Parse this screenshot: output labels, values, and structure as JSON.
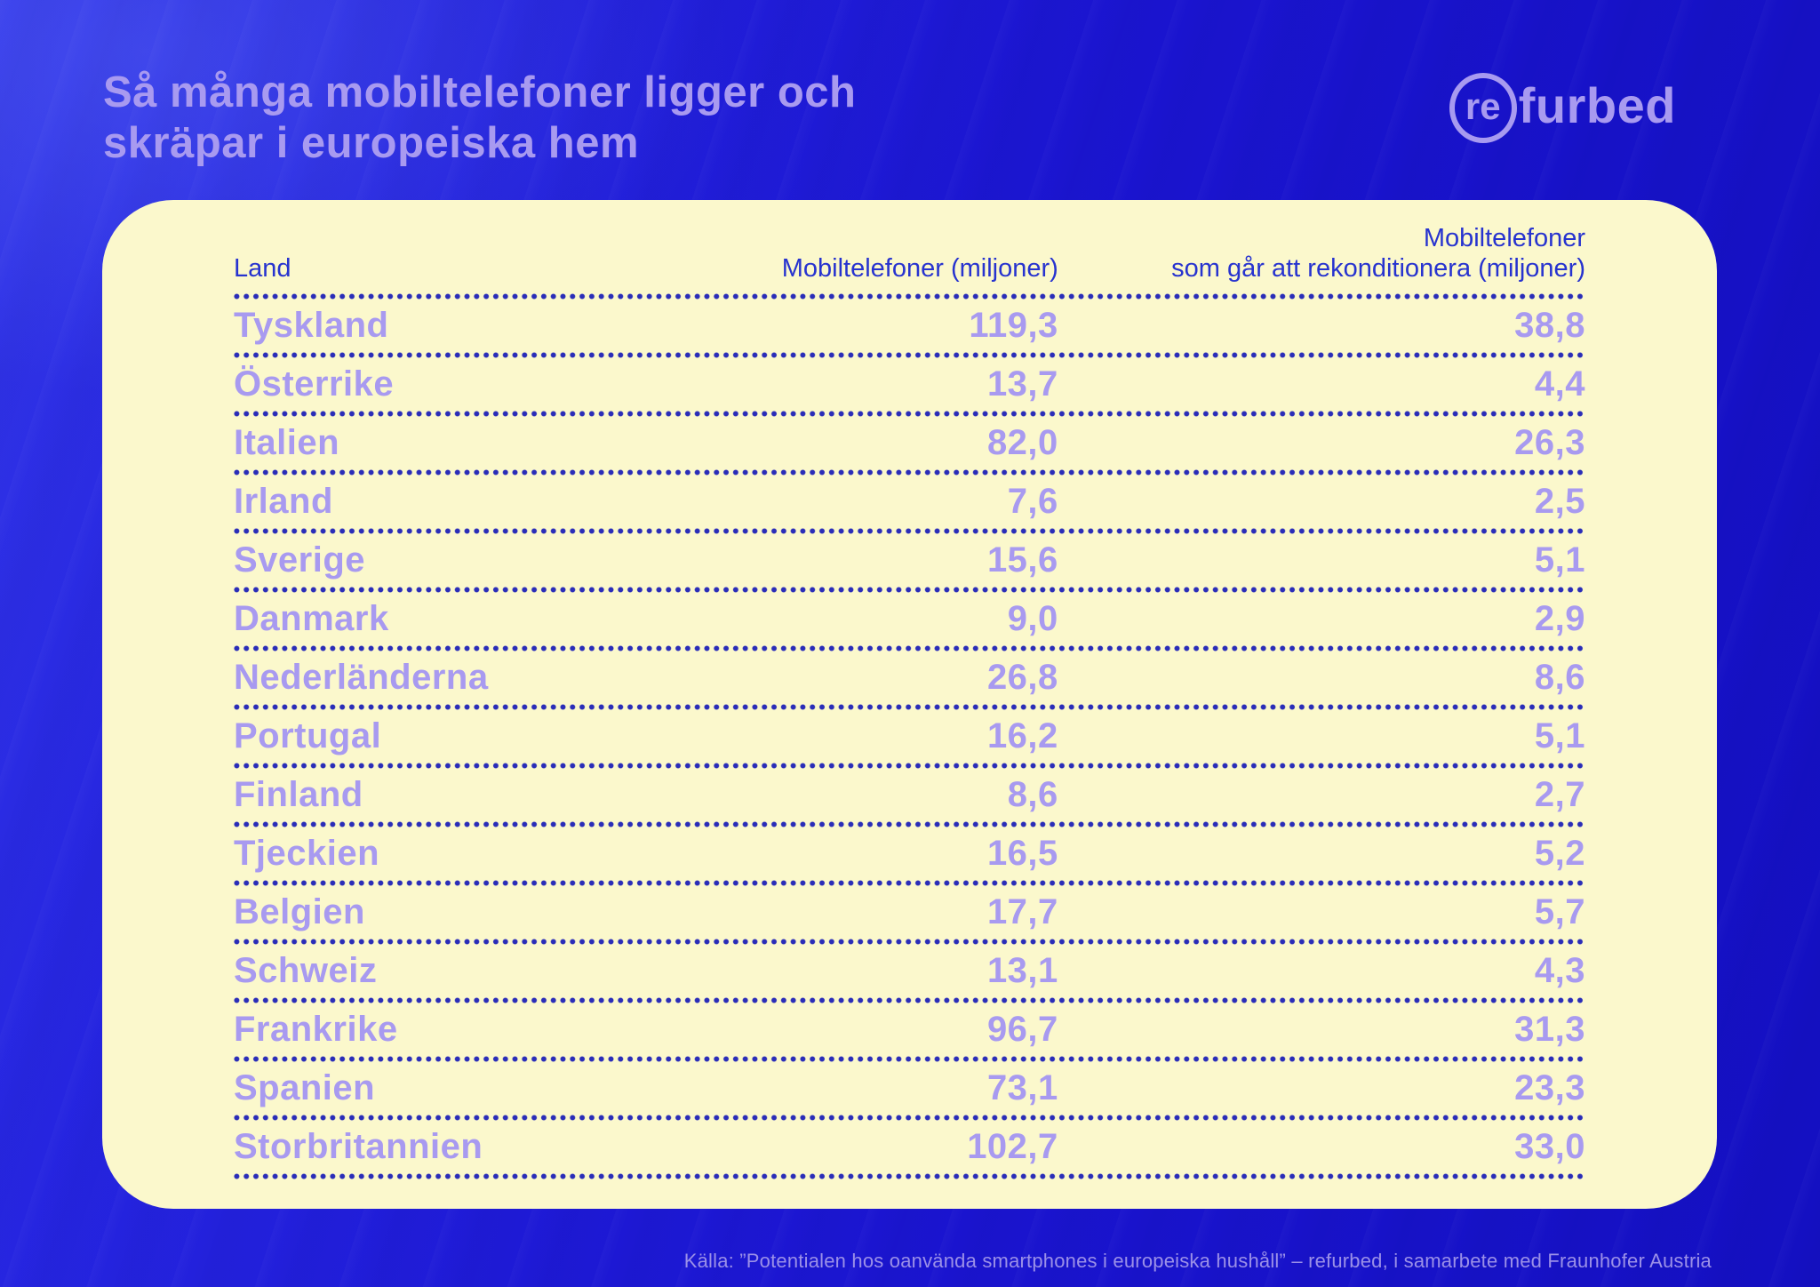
{
  "title": {
    "line1": "Så många mobiltelefoner ligger och",
    "line2": "skräpar i europeiska hem"
  },
  "logo": {
    "circle_text": "re",
    "rest_text": "furbed"
  },
  "table": {
    "columns": {
      "country": "Land",
      "phones": "Mobiltelefoner (miljoner)",
      "refurb_line1": "Mobiltelefoner",
      "refurb_line2": "som går att rekonditionera (miljoner)"
    },
    "rows": [
      {
        "country": "Tyskland",
        "phones": "119,3",
        "refurb": "38,8"
      },
      {
        "country": "Österrike",
        "phones": "13,7",
        "refurb": "4,4"
      },
      {
        "country": "Italien",
        "phones": "82,0",
        "refurb": "26,3"
      },
      {
        "country": "Irland",
        "phones": "7,6",
        "refurb": "2,5"
      },
      {
        "country": "Sverige",
        "phones": "15,6",
        "refurb": "5,1"
      },
      {
        "country": "Danmark",
        "phones": "9,0",
        "refurb": "2,9"
      },
      {
        "country": "Nederländerna",
        "phones": "26,8",
        "refurb": "8,6"
      },
      {
        "country": "Portugal",
        "phones": "16,2",
        "refurb": "5,1"
      },
      {
        "country": "Finland",
        "phones": "8,6",
        "refurb": "2,7"
      },
      {
        "country": "Tjeckien",
        "phones": "16,5",
        "refurb": "5,2"
      },
      {
        "country": "Belgien",
        "phones": "17,7",
        "refurb": "5,7"
      },
      {
        "country": "Schweiz",
        "phones": "13,1",
        "refurb": "4,3"
      },
      {
        "country": "Frankrike",
        "phones": "96,7",
        "refurb": "31,3"
      },
      {
        "country": "Spanien",
        "phones": "73,1",
        "refurb": "23,3"
      },
      {
        "country": "Storbritannien",
        "phones": "102,7",
        "refurb": "33,0"
      }
    ]
  },
  "footer": {
    "source": "Källa: ”Potentialen hos oanvända smartphones i europeiska hushåll” – refurbed, i samarbete med Fraunhofer Austria"
  },
  "colors": {
    "background_blue": "#1a14cf",
    "card_yellow": "#fbf8cc",
    "header_blue": "#2733cf",
    "dot_blue": "#2a2db8",
    "accent_purple": "#a89af0",
    "footer_purple": "#9b90e8"
  },
  "chart_data": {
    "type": "table",
    "title": "Så många mobiltelefoner ligger och skräpar i europeiska hem",
    "columns": [
      "Land",
      "Mobiltelefoner (miljoner)",
      "Mobiltelefoner som går att rekonditionera (miljoner)"
    ],
    "categories": [
      "Tyskland",
      "Österrike",
      "Italien",
      "Irland",
      "Sverige",
      "Danmark",
      "Nederländerna",
      "Portugal",
      "Finland",
      "Tjeckien",
      "Belgien",
      "Schweiz",
      "Frankrike",
      "Spanien",
      "Storbritannien"
    ],
    "series": [
      {
        "name": "Mobiltelefoner (miljoner)",
        "values": [
          119.3,
          13.7,
          82.0,
          7.6,
          15.6,
          9.0,
          26.8,
          16.2,
          8.6,
          16.5,
          17.7,
          13.1,
          96.7,
          73.1,
          102.7
        ]
      },
      {
        "name": "Mobiltelefoner som går att rekonditionera (miljoner)",
        "values": [
          38.8,
          4.4,
          26.3,
          2.5,
          5.1,
          2.9,
          8.6,
          5.1,
          2.7,
          5.2,
          5.7,
          4.3,
          31.3,
          23.3,
          33.0
        ]
      }
    ],
    "source": "Källa: ”Potentialen hos oanvända smartphones i europeiska hushåll” – refurbed, i samarbete med Fraunhofer Austria"
  }
}
